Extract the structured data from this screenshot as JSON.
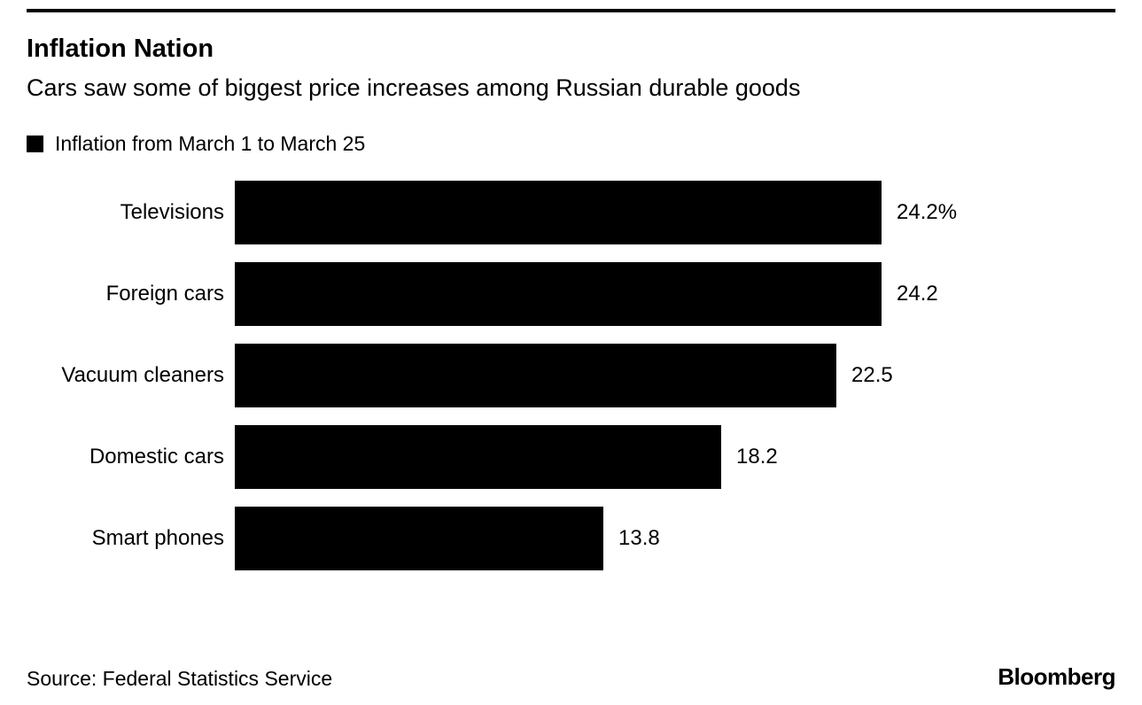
{
  "header": {
    "title": "Inflation Nation",
    "subtitle": "Cars saw some of biggest price increases among Russian durable goods"
  },
  "legend": {
    "label": "Inflation from March 1 to March 25",
    "swatch_color": "#000000"
  },
  "chart_data": {
    "type": "bar",
    "orientation": "horizontal",
    "title": "Inflation Nation",
    "subtitle": "Cars saw some of biggest price increases among Russian durable goods",
    "legend_label": "Inflation from March 1 to March 25",
    "categories": [
      "Televisions",
      "Foreign cars",
      "Vacuum cleaners",
      "Domestic cars",
      "Smart phones"
    ],
    "values": [
      24.2,
      24.2,
      22.5,
      18.2,
      13.8
    ],
    "value_labels": [
      "24.2%",
      "24.2",
      "22.5",
      "18.2",
      "13.8"
    ],
    "unit": "percent",
    "xlim": [
      0,
      24.2
    ],
    "bar_color": "#000000",
    "grid": false,
    "legend_position": "top-left"
  },
  "footer": {
    "source": "Source: Federal Statistics Service",
    "brand": "Bloomberg"
  }
}
